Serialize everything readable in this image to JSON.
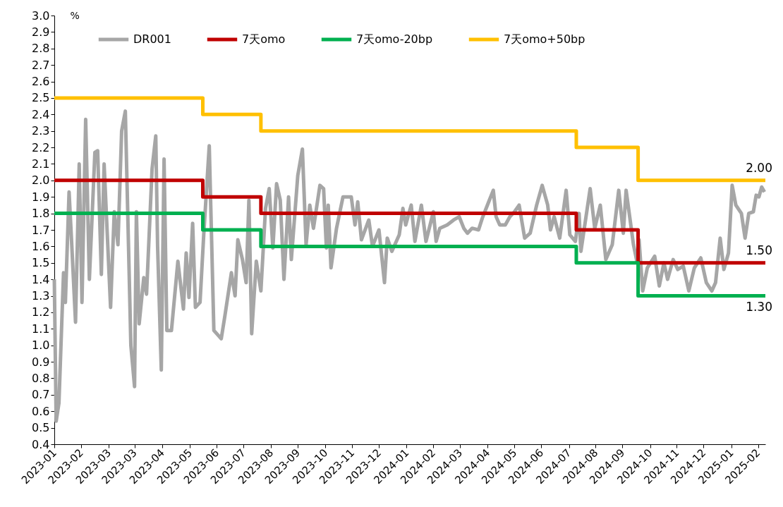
{
  "chart_data": {
    "type": "line",
    "ylabel": "%",
    "legend": "top",
    "xlim": [
      "2023-01-03",
      "2025-02-12"
    ],
    "xticks": [
      {
        "value": "2023-01-03",
        "label": "2023-01"
      },
      {
        "value": "2023-02-01",
        "label": "2023-02"
      },
      {
        "value": "2023-03-03",
        "label": "2023-03"
      },
      {
        "value": "2023-03-31",
        "label": "2023-03"
      },
      {
        "value": "2023-04-30",
        "label": "2023-04"
      },
      {
        "value": "2023-05-30",
        "label": "2023-05"
      },
      {
        "value": "2023-06-28",
        "label": "2023-06"
      },
      {
        "value": "2023-07-27",
        "label": "2023-07"
      },
      {
        "value": "2023-08-26",
        "label": "2023-08"
      },
      {
        "value": "2023-09-24",
        "label": "2023-09"
      },
      {
        "value": "2023-10-24",
        "label": "2023-10"
      },
      {
        "value": "2023-11-22",
        "label": "2023-11"
      },
      {
        "value": "2023-12-21",
        "label": "2023-12"
      },
      {
        "value": "2024-01-20",
        "label": "2024-01"
      },
      {
        "value": "2024-02-18",
        "label": "2024-02"
      },
      {
        "value": "2024-03-18",
        "label": "2024-03"
      },
      {
        "value": "2024-04-17",
        "label": "2024-04"
      },
      {
        "value": "2024-05-16",
        "label": "2024-05"
      },
      {
        "value": "2024-06-14",
        "label": "2024-06"
      },
      {
        "value": "2024-07-14",
        "label": "2024-07"
      },
      {
        "value": "2024-08-12",
        "label": "2024-08"
      },
      {
        "value": "2024-09-10",
        "label": "2024-09"
      },
      {
        "value": "2024-10-10",
        "label": "2024-10"
      },
      {
        "value": "2024-11-08",
        "label": "2024-11"
      },
      {
        "value": "2024-12-07",
        "label": "2024-12"
      },
      {
        "value": "2025-01-06",
        "label": "2025-01"
      },
      {
        "value": "2025-02-04",
        "label": "2025-02"
      }
    ],
    "ylim": [
      0.4,
      3.0
    ],
    "yticks": [
      0.4,
      0.5,
      0.6,
      0.7,
      0.8,
      0.9,
      {
        "value": 1,
        "label": "1.0"
      },
      1.1,
      1.2,
      1.3,
      1.4,
      1.5,
      1.6,
      1.7,
      1.8,
      1.9,
      {
        "value": 2,
        "label": "2.0"
      },
      2.1,
      2.2,
      2.3,
      2.4,
      2.5,
      2.6,
      2.7,
      2.8,
      2.9,
      {
        "value": 3,
        "label": "3.0"
      }
    ],
    "series": [
      {
        "name": "DR001",
        "color": "#a6a6a6",
        "type": "line",
        "x": [
          "2023-01-03",
          "2023-01-05",
          "2023-01-08",
          "2023-01-13",
          "2023-01-15",
          "2023-01-19",
          "2023-01-22",
          "2023-01-26",
          "2023-01-30",
          "2023-02-02",
          "2023-02-06",
          "2023-02-10",
          "2023-02-16",
          "2023-02-19",
          "2023-02-23",
          "2023-02-26",
          "2023-03-05",
          "2023-03-09",
          "2023-03-13",
          "2023-03-17",
          "2023-03-21",
          "2023-03-27",
          "2023-03-31",
          "2023-04-02",
          "2023-04-05",
          "2023-04-10",
          "2023-04-13",
          "2023-04-19",
          "2023-04-23",
          "2023-04-25",
          "2023-04-29",
          "2023-05-02",
          "2023-05-05",
          "2023-05-10",
          "2023-05-17",
          "2023-05-23",
          "2023-05-26",
          "2023-05-29",
          "2023-06-02",
          "2023-06-05",
          "2023-06-10",
          "2023-06-14",
          "2023-06-20",
          "2023-06-25",
          "2023-07-03",
          "2023-07-07",
          "2023-07-14",
          "2023-07-18",
          "2023-07-21",
          "2023-07-26",
          "2023-07-30",
          "2023-08-02",
          "2023-08-05",
          "2023-08-10",
          "2023-08-15",
          "2023-08-20",
          "2023-08-24",
          "2023-08-28",
          "2023-09-01",
          "2023-09-05",
          "2023-09-09",
          "2023-09-14",
          "2023-09-17",
          "2023-09-24",
          "2023-09-29",
          "2023-10-03",
          "2023-10-07",
          "2023-10-11",
          "2023-10-18",
          "2023-10-22",
          "2023-10-25",
          "2023-10-27",
          "2023-10-30",
          "2023-11-05",
          "2023-11-12",
          "2023-11-21",
          "2023-11-25",
          "2023-11-28",
          "2023-12-02",
          "2023-12-10",
          "2023-12-14",
          "2023-12-21",
          "2023-12-27",
          "2023-12-30",
          "2024-01-04",
          "2024-01-12",
          "2024-01-16",
          "2024-01-19",
          "2024-01-25",
          "2024-01-29",
          "2024-02-05",
          "2024-02-10",
          "2024-02-18",
          "2024-02-21",
          "2024-02-25",
          "2024-03-04",
          "2024-03-11",
          "2024-03-17",
          "2024-03-22",
          "2024-03-26",
          "2024-03-31",
          "2024-04-07",
          "2024-04-11",
          "2024-04-18",
          "2024-04-23",
          "2024-04-26",
          "2024-04-30",
          "2024-05-06",
          "2024-05-11",
          "2024-05-16",
          "2024-05-21",
          "2024-05-27",
          "2024-06-02",
          "2024-06-09",
          "2024-06-15",
          "2024-06-21",
          "2024-06-24",
          "2024-06-28",
          "2024-07-04",
          "2024-07-11",
          "2024-07-15",
          "2024-07-21",
          "2024-07-25",
          "2024-07-27",
          "2024-08-06",
          "2024-08-11",
          "2024-08-17",
          "2024-08-23",
          "2024-08-30",
          "2024-09-06",
          "2024-09-11",
          "2024-09-14",
          "2024-09-22",
          "2024-09-26",
          "2024-09-28",
          "2024-10-02",
          "2024-10-07",
          "2024-10-15",
          "2024-10-20",
          "2024-10-25",
          "2024-10-29",
          "2024-11-04",
          "2024-11-09",
          "2024-11-15",
          "2024-11-21",
          "2024-11-27",
          "2024-12-04",
          "2024-12-10",
          "2024-12-16",
          "2024-12-20",
          "2024-12-25",
          "2024-12-29",
          "2025-01-03",
          "2025-01-07",
          "2025-01-11",
          "2025-01-17",
          "2025-01-21",
          "2025-01-25",
          "2025-01-30",
          "2025-02-02",
          "2025-02-05",
          "2025-02-08",
          "2025-02-11"
        ],
        "values": [
          1.4,
          0.54,
          0.65,
          1.44,
          1.26,
          1.93,
          1.6,
          1.14,
          2.1,
          1.26,
          2.37,
          1.4,
          2.17,
          2.18,
          1.43,
          2.1,
          1.23,
          1.81,
          1.61,
          2.3,
          2.42,
          1.0,
          0.75,
          1.81,
          1.13,
          1.41,
          1.31,
          2.07,
          2.27,
          1.6,
          0.85,
          2.13,
          1.09,
          1.09,
          1.51,
          1.22,
          1.56,
          1.29,
          1.74,
          1.23,
          1.26,
          1.67,
          2.21,
          1.09,
          1.04,
          1.18,
          1.44,
          1.3,
          1.64,
          1.52,
          1.38,
          1.88,
          1.07,
          1.51,
          1.33,
          1.83,
          1.95,
          1.59,
          1.98,
          1.88,
          1.4,
          1.9,
          1.52,
          2.03,
          2.19,
          1.61,
          1.85,
          1.71,
          1.97,
          1.95,
          1.59,
          1.85,
          1.47,
          1.71,
          1.9,
          1.9,
          1.73,
          1.87,
          1.64,
          1.76,
          1.6,
          1.7,
          1.38,
          1.65,
          1.57,
          1.67,
          1.83,
          1.73,
          1.85,
          1.63,
          1.85,
          1.63,
          1.81,
          1.63,
          1.71,
          1.73,
          1.76,
          1.78,
          1.71,
          1.68,
          1.71,
          1.7,
          1.77,
          1.87,
          1.94,
          1.78,
          1.73,
          1.73,
          1.78,
          1.81,
          1.85,
          1.65,
          1.68,
          1.85,
          1.97,
          1.85,
          1.7,
          1.78,
          1.65,
          1.94,
          1.67,
          1.63,
          1.8,
          1.57,
          1.95,
          1.71,
          1.85,
          1.52,
          1.61,
          1.94,
          1.68,
          1.94,
          1.61,
          1.5,
          1.64,
          1.33,
          1.47,
          1.54,
          1.36,
          1.5,
          1.4,
          1.52,
          1.46,
          1.48,
          1.33,
          1.47,
          1.53,
          1.38,
          1.33,
          1.38,
          1.65,
          1.46,
          1.56,
          1.97,
          1.85,
          1.8,
          1.65,
          1.8,
          1.81,
          1.91,
          1.9,
          1.96,
          1.93
        ]
      },
      {
        "name": "7天omo",
        "color": "#c00000",
        "type": "step",
        "x": [
          "2023-01-03",
          "2023-06-13",
          "2023-08-15",
          "2024-07-22",
          "2024-09-27",
          "2025-02-12"
        ],
        "values": [
          2.0,
          1.9,
          1.8,
          1.7,
          1.5,
          1.5
        ]
      },
      {
        "name": "7天omo-20bp",
        "color": "#00b050",
        "type": "step",
        "x": [
          "2023-01-03",
          "2023-06-13",
          "2023-08-15",
          "2024-07-22",
          "2024-09-27",
          "2025-02-12"
        ],
        "values": [
          1.8,
          1.7,
          1.6,
          1.5,
          1.3,
          1.3
        ]
      },
      {
        "name": "7天omo+50bp",
        "color": "#ffc000",
        "type": "step",
        "x": [
          "2023-01-03",
          "2023-06-13",
          "2023-08-15",
          "2024-07-22",
          "2024-09-27",
          "2025-02-12"
        ],
        "values": [
          2.5,
          2.4,
          2.3,
          2.2,
          2.0,
          2.0
        ]
      }
    ],
    "annotations": [
      {
        "text": "2.00",
        "x": "2025-02-12",
        "y": 2.0
      },
      {
        "text": "1.50",
        "x": "2025-02-12",
        "y": 1.5
      },
      {
        "text": "1.30",
        "x": "2025-02-12",
        "y": 1.3
      }
    ]
  }
}
